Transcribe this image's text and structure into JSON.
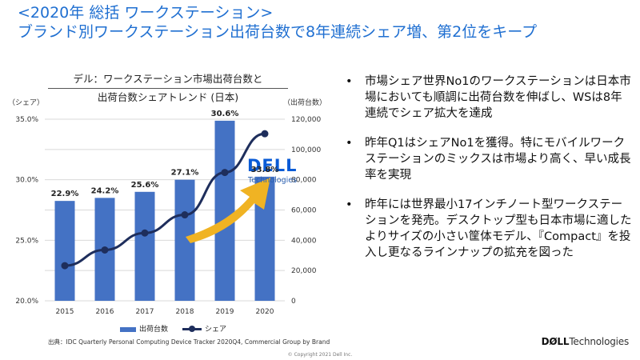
{
  "header": {
    "line1": "<2020年 総括 ワークステーション>",
    "line2": "ブランド別ワークステーション出荷台数で8年連続シェア増、第2位をキープ"
  },
  "chart_title_lines": [
    "デル：ワークステーション市場出荷台数と",
    "出荷台数シェアトレンド (日本)"
  ],
  "chart_data": {
    "type": "bar",
    "categories": [
      "2015",
      "2016",
      "2017",
      "2018",
      "2019",
      "2020"
    ],
    "series": [
      {
        "name": "出荷台数",
        "type": "bar",
        "axis": "right",
        "values": [
          66000,
          68000,
          72000,
          80000,
          119000,
          82000
        ]
      },
      {
        "name": "シェア",
        "type": "line",
        "axis": "left",
        "values": [
          22.9,
          24.2,
          25.6,
          27.1,
          30.6,
          33.8
        ],
        "labels": [
          "22.9%",
          "24.2%",
          "25.6%",
          "27.1%",
          "30.6%",
          "33.8%"
        ]
      }
    ],
    "left_axis": {
      "unit_label": "（シェア）",
      "ylim": [
        20,
        35
      ],
      "ticks": [
        "20.0%",
        "25.0%",
        "30.0%",
        "35.0%"
      ]
    },
    "right_axis": {
      "unit_label": "（出荷台数）",
      "ylim": [
        0,
        120000
      ],
      "ticks": [
        "0",
        "20,000",
        "40,000",
        "60,000",
        "80,000",
        "100,000",
        "120,000"
      ]
    },
    "grid": true,
    "legend_placement": "bottom",
    "colors": {
      "bar": "#4472c4",
      "line": "#1e2e5c",
      "arrow": "#f0b323"
    }
  },
  "overlay_logo": {
    "brand": "DELL",
    "sub": "Technologies"
  },
  "bullets": [
    "市場シェア世界No1のワークステーションは日本市場においても順調に出荷台数を伸ばし、WSは8年連続でシェア拡大を達成",
    "昨年Q1はシェアNo1を獲得。特にモバイルワークステーションのミックスは市場より高く、早い成長率を実現",
    "昨年には世界最小17インチノート型ワークステーションを発売。デスクトップ型も日本市場に適したよりサイズの小さい筐体モデル、『Compact』を投入し更なるラインナップの拡充を図った"
  ],
  "source": "出典：IDC Quarterly Personal Computing Device Tracker 2020Q4, Commercial Group by Brand",
  "copyright": "© Copyright 2021 Dell Inc.",
  "footer_logo": {
    "brand": "DØLL",
    "sub": "Technologies"
  }
}
